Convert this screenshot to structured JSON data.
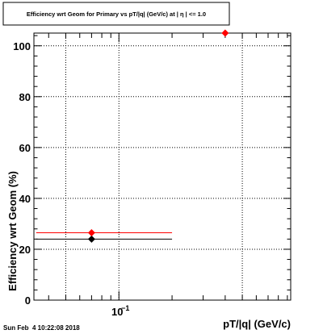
{
  "title": "Efficiency wrt Geom for Primary vs pT/|q| (GeV/c) at | η | <= 1.0",
  "timestamp": "Sun Feb  4 10:22:08 2018",
  "colors": {
    "frame": "#000000",
    "grid": "#000000",
    "series_black": "#000000",
    "series_red": "#ff0000"
  },
  "chart_data": {
    "type": "scatter",
    "title": "Efficiency wrt Geom for Primary vs pT/|q| (GeV/c) at | η | <= 1.0",
    "xlabel": "pT/|q| (GeV/c)",
    "ylabel": "Efficiency wrt Geom (%)",
    "xscale": "log",
    "xlim": [
      0.033,
      0.94
    ],
    "ylim": [
      0,
      105
    ],
    "grid": true,
    "legend": "none",
    "x_tick_labels": [
      {
        "value": 0.1,
        "label": "10",
        "exponent": "−1"
      }
    ],
    "y_ticks": [
      0,
      20,
      40,
      60,
      80,
      100
    ],
    "series": [
      {
        "color": "#000000",
        "marker": "diamond",
        "points": [
          {
            "x": 0.07,
            "y": 24,
            "xerr": [
              0.034,
              0.2
            ]
          }
        ]
      },
      {
        "color": "#ff0000",
        "marker": "diamond",
        "points": [
          {
            "x": 0.07,
            "y": 26.5,
            "xerr": [
              0.034,
              0.2
            ]
          },
          {
            "x": 0.4,
            "y": 105
          }
        ]
      }
    ]
  }
}
